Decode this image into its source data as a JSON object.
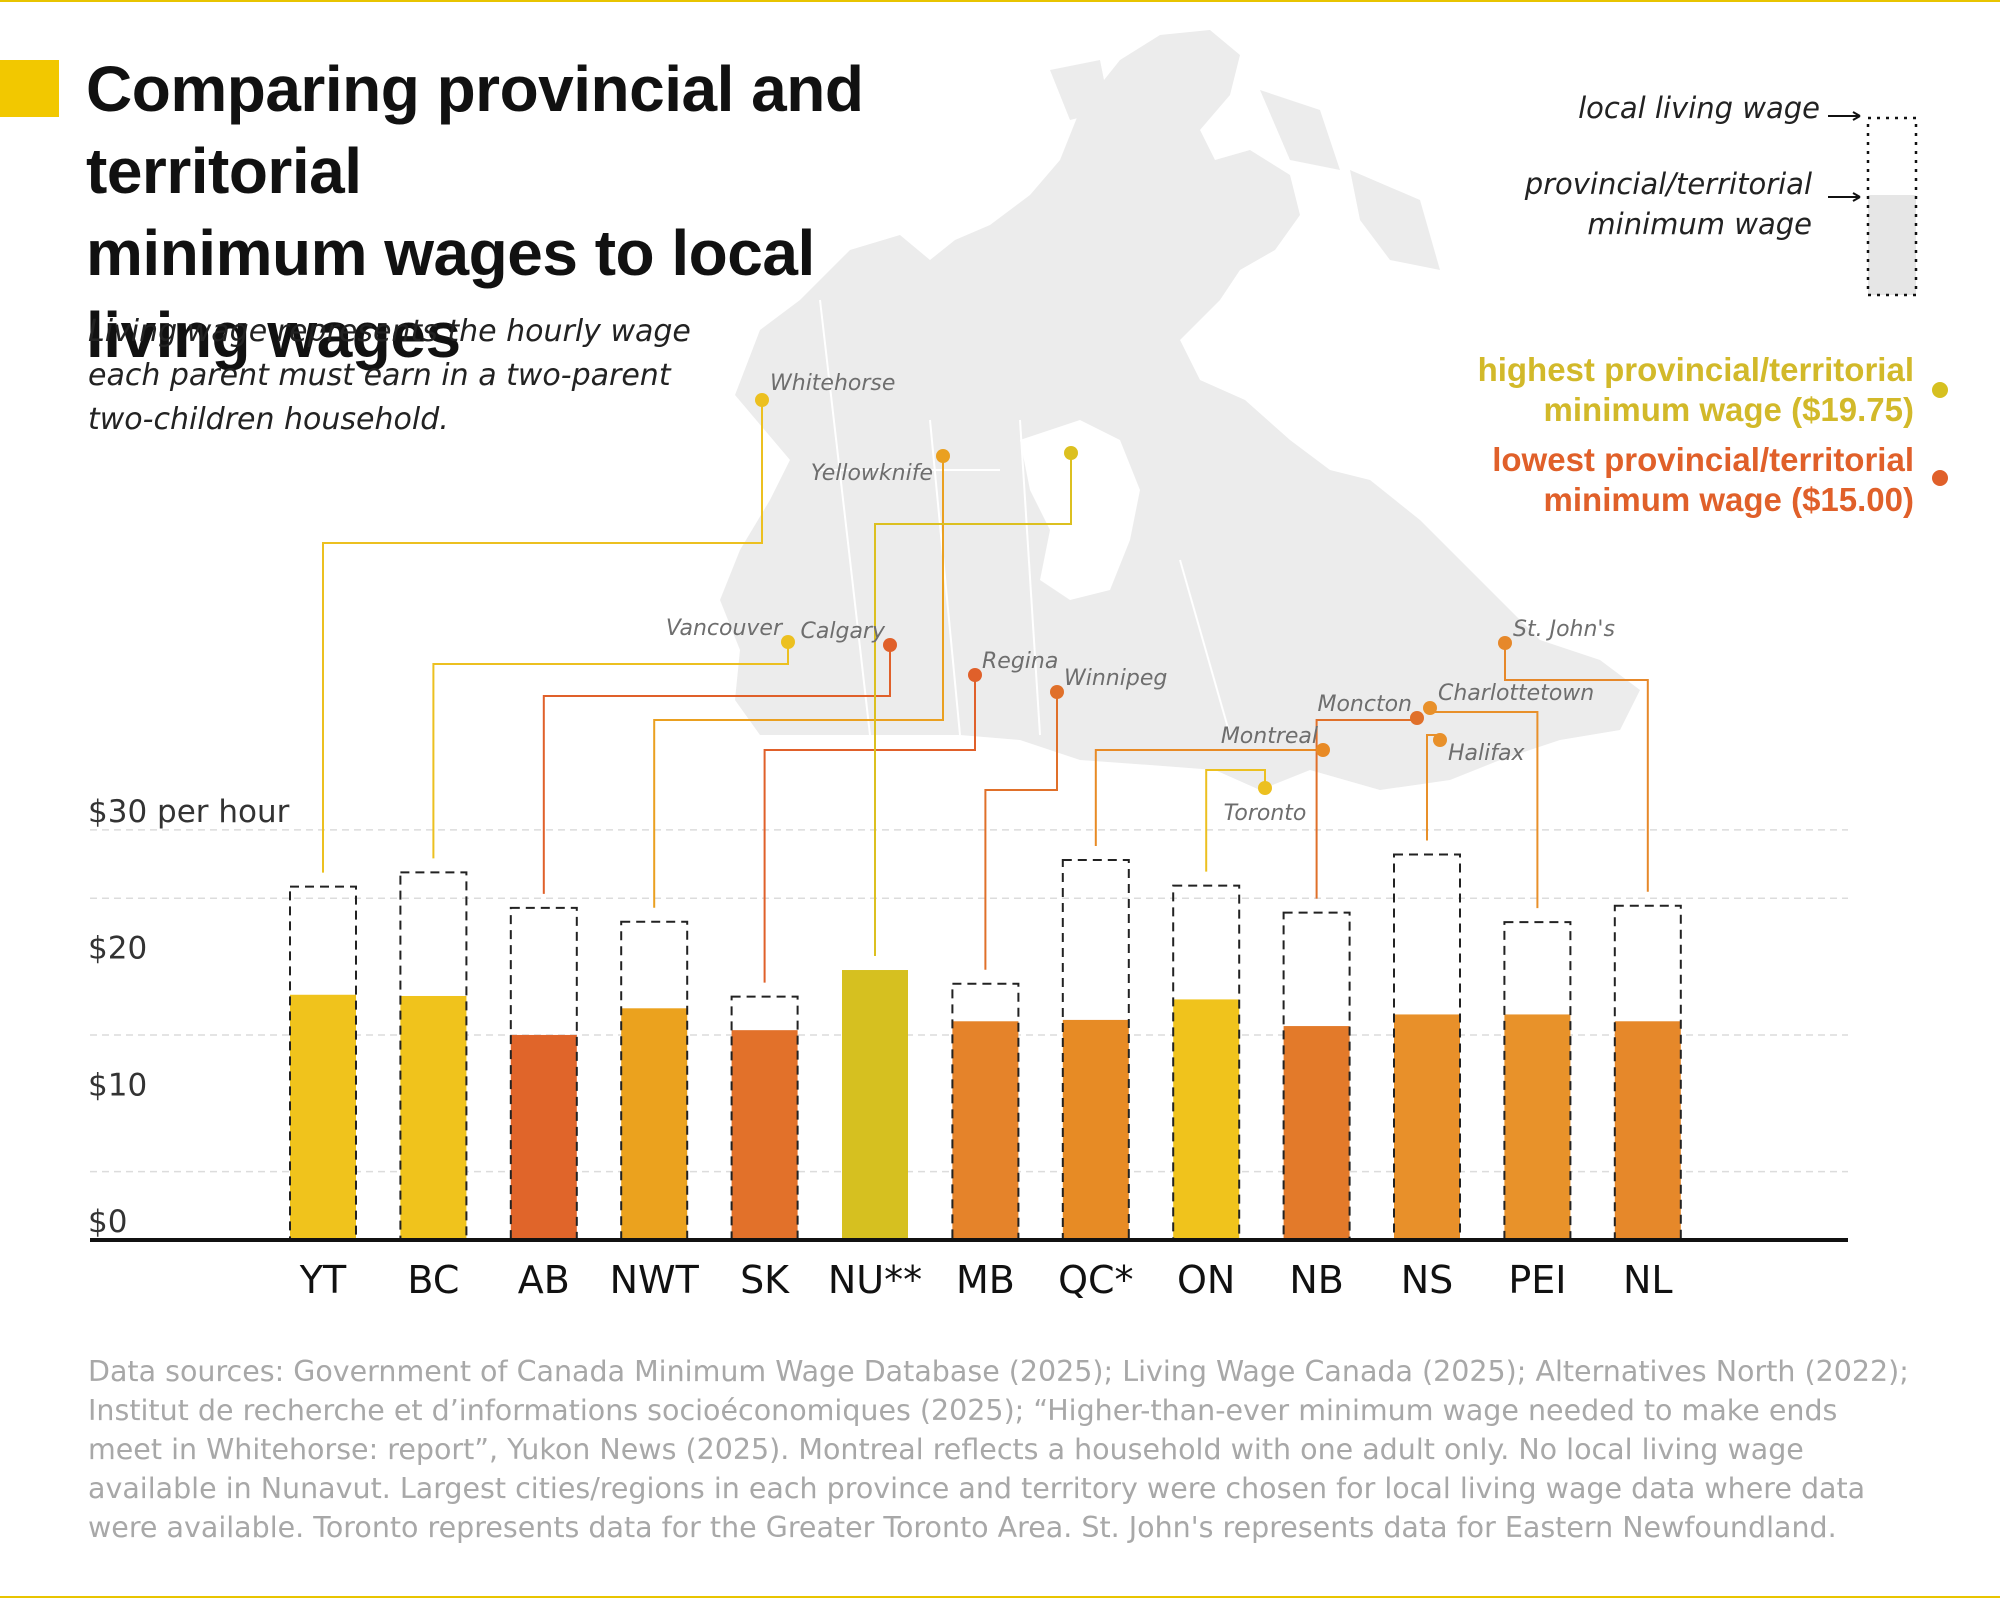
{
  "title": "Comparing provincial and territorial minimum wages to local living wages",
  "title_lines": [
    "Comparing provincial and territorial",
    "minimum wages to local",
    "living wages"
  ],
  "subtitle_lines": [
    "Living wage represents the hourly wage",
    "each parent must earn in a two-parent",
    "two-children household."
  ],
  "colors": {
    "accent": "#f2c800",
    "rule": "#e8c400",
    "highest": "#d6c020",
    "lowest": "#e0652a",
    "map": "#ececec",
    "grid": "#d8d8d8",
    "axis": "#111111"
  },
  "legend": {
    "living_wage_label": "local living wage",
    "min_wage_label_lines": [
      "provincial/territorial",
      "minimum wage"
    ],
    "highest_lines": [
      "highest provincial/territorial",
      "minimum wage ($19.75)"
    ],
    "lowest_lines": [
      "lowest provincial/territorial",
      "minimum wage ($15.00)"
    ],
    "highest_color": "#d2b92a",
    "lowest_color": "#e0602a"
  },
  "chart_data": {
    "type": "bar",
    "ylim": [
      0,
      30
    ],
    "y_ticks": [
      {
        "value": 0,
        "label": "$0"
      },
      {
        "value": 10,
        "label": "$10"
      },
      {
        "value": 20,
        "label": "$20"
      },
      {
        "value": 30,
        "label": "$30 per hour"
      }
    ],
    "grid_values": [
      5,
      15,
      25,
      30
    ],
    "categories": [
      "YT",
      "BC",
      "AB",
      "NWT",
      "SK",
      "NU**",
      "MB",
      "QC*",
      "ON",
      "NB",
      "NS",
      "PEI",
      "NL"
    ],
    "cities": [
      "Whitehorse",
      "Vancouver",
      "Calgary",
      "Yellowknife",
      "Regina",
      "",
      "Winnipeg",
      "Montreal",
      "Toronto",
      "Moncton",
      "Halifax",
      "Charlottetown",
      "St. John's"
    ],
    "series": [
      {
        "name": "provincial/territorial minimum wage",
        "values": [
          17.94,
          17.85,
          15.0,
          16.95,
          15.35,
          19.75,
          16.0,
          16.1,
          17.6,
          15.65,
          16.5,
          16.5,
          16.0
        ]
      },
      {
        "name": "local living wage",
        "values": [
          25.85,
          26.89,
          24.3,
          23.28,
          17.8,
          null,
          18.75,
          27.8,
          25.92,
          23.95,
          28.2,
          23.25,
          24.45
        ]
      }
    ],
    "bar_colors": [
      "#f0c31c",
      "#f0c31c",
      "#e0652a",
      "#eba21e",
      "#e2712a",
      "#d6c020",
      "#e5832a",
      "#e78b25",
      "#f0c31c",
      "#e37a2a",
      "#e8902a",
      "#e8922a",
      "#e6882a"
    ],
    "city_dot_colors": [
      "#ecc020",
      "#ecc020",
      "#e0602a",
      "#eaa020",
      "#e0602a",
      "#dcc020",
      "#e0702a",
      "#e88a25",
      "#ecc020",
      "#e0702a",
      "#e8902a",
      "#e8902a",
      "#e6882a"
    ],
    "highlights": {
      "highest": "NU**",
      "lowest": "AB"
    }
  },
  "sources_lines": [
    "Data sources: Government of Canada Minimum Wage Database (2025); Living Wage Canada (2025); Alternatives North (2022);",
    "Institut de recherche et d’informations socioéconomiques (2025); “Higher-than-ever minimum wage needed to make ends",
    "meet in Whitehorse: report”, Yukon News (2025). Montreal reflects a household with one adult only. No local living wage",
    "available in Nunavut. Largest cities/regions in each province and territory were chosen for local living wage data where data",
    "were available. Toronto represents data for the Greater Toronto Area. St. John's represents data for Eastern Newfoundland."
  ]
}
